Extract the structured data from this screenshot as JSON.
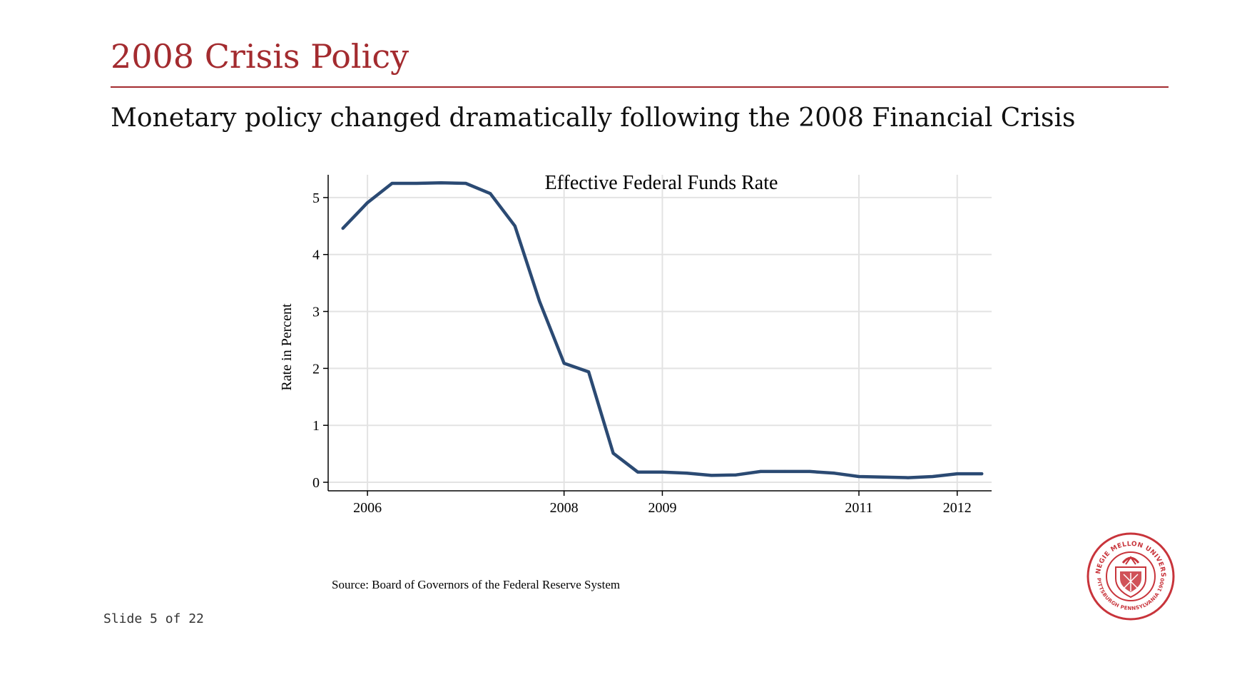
{
  "slide": {
    "title": "2008 Crisis Policy",
    "subtitle": "Monetary policy changed dramatically following the 2008 Financial Crisis",
    "footer": "Slide 5 of 22",
    "accent_color": "#a32b2f"
  },
  "seal": {
    "ring_text_top": "CARNEGIE MELLON UNIVERSITY",
    "ring_text_bottom": "PITTSBURGH PENNSYLVANIA 1900",
    "color": "#c8343b"
  },
  "chart_data": {
    "type": "line",
    "title": "Effective Federal Funds Rate",
    "xlabel": "",
    "ylabel": "Rate in Percent",
    "source_note": "Source: Board of Governors of the Federal Reserve System",
    "xlim": [
      2005.6,
      2012.35
    ],
    "ylim": [
      -0.15,
      5.4
    ],
    "x_ticks": [
      2006,
      2008,
      2009,
      2011,
      2012
    ],
    "x_tick_labels": [
      "2006",
      "2008",
      "2009",
      "2011",
      "2012"
    ],
    "y_ticks": [
      0,
      1,
      2,
      3,
      4,
      5
    ],
    "y_tick_labels": [
      "0",
      "1",
      "2",
      "3",
      "4",
      "5"
    ],
    "grid": true,
    "line_color": "#2b4a73",
    "series": [
      {
        "x": [
          2005.75,
          2006.0,
          2006.25,
          2006.5,
          2006.75,
          2007.0,
          2007.25,
          2007.5,
          2007.75,
          2008.0,
          2008.25,
          2008.5,
          2008.75,
          2009.0,
          2009.25,
          2009.5,
          2009.75,
          2010.0,
          2010.25,
          2010.5,
          2010.75,
          2011.0,
          2011.25,
          2011.5,
          2011.75,
          2012.0,
          2012.25
        ],
        "y": [
          4.46,
          4.91,
          5.25,
          5.25,
          5.26,
          5.25,
          5.07,
          4.5,
          3.18,
          2.09,
          1.94,
          0.51,
          0.18,
          0.18,
          0.16,
          0.12,
          0.13,
          0.19,
          0.19,
          0.19,
          0.16,
          0.1,
          0.09,
          0.08,
          0.1,
          0.15,
          0.15
        ]
      }
    ]
  }
}
